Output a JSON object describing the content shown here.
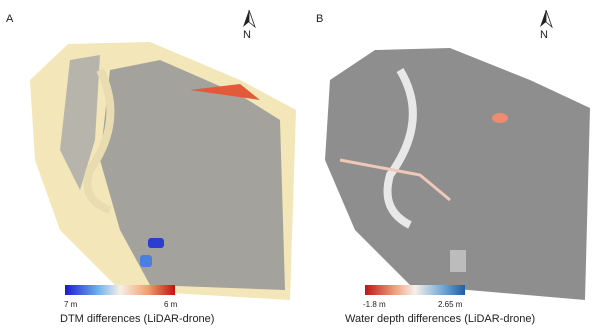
{
  "panels": [
    {
      "label": "A",
      "north": "N",
      "legend": {
        "min_label": "7 m",
        "max_label": "6 m",
        "caption": "DTM differences (LiDAR-drone)"
      }
    },
    {
      "label": "B",
      "north": "N",
      "legend": {
        "min_label": "-1.8 m",
        "max_label": "2.65 m",
        "caption": "Water depth differences (LiDAR-drone)"
      }
    }
  ]
}
